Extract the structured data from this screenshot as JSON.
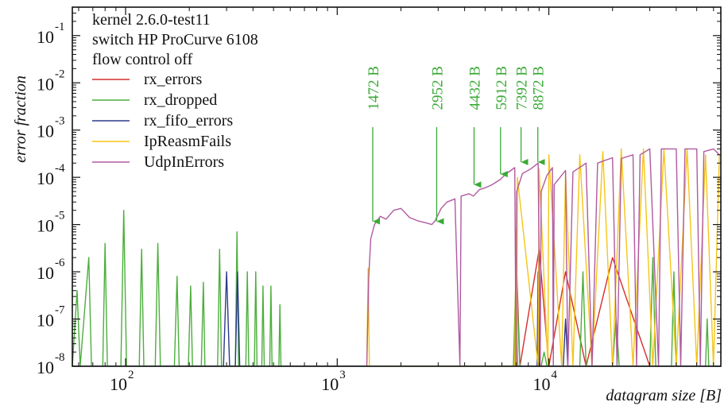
{
  "chart_data": {
    "type": "line",
    "xlabel": "datagram size [B]",
    "ylabel": "error fraction",
    "x_scale": "log",
    "y_scale": "log",
    "xlim": [
      56,
      65000
    ],
    "ylim": [
      1e-08,
      0.4
    ],
    "grid": false,
    "legend_position": "top-left",
    "info_lines": [
      "kernel 2.6.0-test11",
      "switch HP ProCurve 6108",
      "flow control off"
    ],
    "x_ticks": [
      {
        "base": "10",
        "exp": "2",
        "value": 100
      },
      {
        "base": "10",
        "exp": "3",
        "value": 1000
      },
      {
        "base": "10",
        "exp": "4",
        "value": 10000
      }
    ],
    "y_ticks": [
      {
        "base": "10",
        "exp": "-1",
        "value": 0.1
      },
      {
        "base": "10",
        "exp": "-2",
        "value": 0.01
      },
      {
        "base": "10",
        "exp": "-3",
        "value": 0.001
      },
      {
        "base": "10",
        "exp": "-4",
        "value": 0.0001
      },
      {
        "base": "10",
        "exp": "-5",
        "value": 1e-05
      },
      {
        "base": "10",
        "exp": "-6",
        "value": 1e-06
      },
      {
        "base": "10",
        "exp": "-7",
        "value": 1e-07
      },
      {
        "base": "10",
        "exp": "-8",
        "value": 1e-08
      }
    ],
    "annotations": [
      {
        "text": "1472 B",
        "x": 1472,
        "y": 1e-05
      },
      {
        "text": "2952 B",
        "x": 2952,
        "y": 1e-05
      },
      {
        "text": "4432 B",
        "x": 4432,
        "y": 6e-05
      },
      {
        "text": "5912 B",
        "x": 5912,
        "y": 0.0001
      },
      {
        "text": "7392 B",
        "x": 7392,
        "y": 0.00018
      },
      {
        "text": "8872 B",
        "x": 8872,
        "y": 0.00018
      }
    ],
    "annotation_color": "#3aaa35",
    "series": [
      {
        "name": "rx_errors",
        "color": "#d62c2c",
        "points": [
          [
            7000,
            3e-06
          ],
          [
            7300,
            1e-08
          ],
          [
            9000,
            3e-06
          ],
          [
            10000,
            1e-08
          ],
          [
            12000,
            1e-06
          ],
          [
            15000,
            1e-08
          ],
          [
            20000,
            2e-06
          ],
          [
            30000,
            1e-08
          ]
        ]
      },
      {
        "name": "rx_dropped",
        "color": "#4caf3c",
        "points": [
          [
            56,
            1e-08
          ],
          [
            59,
            4e-07
          ],
          [
            61,
            1e-08
          ],
          [
            67,
            2e-06
          ],
          [
            69,
            1e-08
          ],
          [
            78,
            1e-08
          ],
          [
            80,
            4e-06
          ],
          [
            82,
            1e-08
          ],
          [
            95,
            1e-08
          ],
          [
            98,
            2e-05
          ],
          [
            101,
            1e-08
          ],
          [
            116,
            1e-08
          ],
          [
            119,
            3e-06
          ],
          [
            122,
            1e-08
          ],
          [
            138,
            1e-08
          ],
          [
            142,
            4e-06
          ],
          [
            146,
            1e-08
          ],
          [
            170,
            1e-08
          ],
          [
            175,
            8e-07
          ],
          [
            179,
            1e-08
          ],
          [
            198,
            1e-08
          ],
          [
            203,
            5e-07
          ],
          [
            207,
            1e-08
          ],
          [
            228,
            1e-08
          ],
          [
            233,
            6e-07
          ],
          [
            237,
            1e-08
          ],
          [
            272,
            1e-08
          ],
          [
            278,
            3e-06
          ],
          [
            284,
            1e-08
          ],
          [
            330,
            1e-08
          ],
          [
            336,
            7e-06
          ],
          [
            342,
            1e-08
          ],
          [
            370,
            1e-08
          ],
          [
            376,
            1e-06
          ],
          [
            382,
            1e-08
          ],
          [
            406,
            1e-08
          ],
          [
            412,
            1e-06
          ],
          [
            418,
            1e-08
          ],
          [
            440,
            1e-08
          ],
          [
            446,
            5e-07
          ],
          [
            452,
            1e-08
          ],
          [
            480,
            1e-08
          ],
          [
            486,
            5e-07
          ],
          [
            492,
            1e-08
          ],
          [
            530,
            1e-08
          ],
          [
            536,
            2e-07
          ],
          [
            542,
            1e-08
          ],
          [
            6800,
            1e-08
          ],
          [
            7000,
            1e-06
          ],
          [
            7300,
            1e-08
          ],
          [
            9200,
            1e-08
          ],
          [
            9500,
            2e-08
          ],
          [
            9800,
            1e-08
          ],
          [
            14000,
            1e-08
          ],
          [
            14500,
            1e-06
          ],
          [
            15000,
            1e-08
          ],
          [
            20000,
            1e-08
          ],
          [
            20800,
            1e-07
          ],
          [
            21500,
            1e-08
          ],
          [
            30000,
            1e-08
          ],
          [
            31000,
            2e-06
          ],
          [
            32000,
            1e-08
          ],
          [
            38000,
            1e-08
          ],
          [
            39000,
            1e-06
          ],
          [
            40000,
            1e-08
          ],
          [
            55000,
            1e-08
          ],
          [
            56000,
            1e-07
          ],
          [
            57000,
            1e-08
          ],
          [
            65000,
            1e-08
          ]
        ]
      },
      {
        "name": "rx_fifo_errors",
        "color": "#2c3a8a",
        "points": [
          [
            56,
            1e-08
          ],
          [
            290,
            1e-08
          ],
          [
            300,
            1e-06
          ],
          [
            310,
            1e-08
          ],
          [
            330,
            1e-08
          ],
          [
            338,
            1e-06
          ],
          [
            346,
            1e-08
          ],
          [
            6900,
            1e-08
          ],
          [
            7000,
            2e-06
          ],
          [
            7100,
            1e-08
          ],
          [
            8800,
            1e-08
          ],
          [
            8900,
            1e-06
          ],
          [
            9000,
            1e-08
          ],
          [
            11700,
            1e-08
          ],
          [
            12000,
            1e-07
          ],
          [
            12300,
            1e-08
          ],
          [
            65000,
            1e-08
          ]
        ]
      },
      {
        "name": "IpReasmFails",
        "color": "#f5c518",
        "points": [
          [
            1380,
            1e-08
          ],
          [
            1400,
            1.2e-06
          ],
          [
            1420,
            1e-08
          ],
          [
            6900,
            1e-08
          ],
          [
            7000,
            8e-06
          ],
          [
            7050,
            1e-08
          ],
          [
            7100,
            0.0001
          ],
          [
            8900,
            1e-08
          ],
          [
            9000,
            0.00015
          ],
          [
            9900,
            1e-08
          ],
          [
            10000,
            0.0003
          ],
          [
            11500,
            1e-08
          ],
          [
            12000,
            0.00012
          ],
          [
            13000,
            1e-08
          ],
          [
            14000,
            0.0003
          ],
          [
            16000,
            1e-08
          ],
          [
            18000,
            0.00035
          ],
          [
            20000,
            1e-08
          ],
          [
            22000,
            0.0004
          ],
          [
            25000,
            1e-08
          ],
          [
            28000,
            0.0004
          ],
          [
            31000,
            1e-08
          ],
          [
            35000,
            0.0004
          ],
          [
            40000,
            1e-08
          ],
          [
            45000,
            0.0004
          ],
          [
            50000,
            1e-08
          ],
          [
            55000,
            0.0003
          ],
          [
            60000,
            1e-08
          ],
          [
            64000,
            0.0003
          ]
        ]
      },
      {
        "name": "UdpInErrors",
        "color": "#b05aa0",
        "points": [
          [
            1380,
            1e-08
          ],
          [
            1410,
            8e-07
          ],
          [
            1440,
            5e-06
          ],
          [
            1500,
            1e-05
          ],
          [
            1600,
            1.5e-05
          ],
          [
            1700,
            1.3e-05
          ],
          [
            1850,
            2e-05
          ],
          [
            2000,
            2.2e-05
          ],
          [
            2200,
            1.4e-05
          ],
          [
            2400,
            1.2e-05
          ],
          [
            2600,
            1.1e-05
          ],
          [
            2800,
            1e-05
          ],
          [
            2900,
            1.2e-05
          ],
          [
            3100,
            2.2e-05
          ],
          [
            3300,
            3e-05
          ],
          [
            3600,
            3.5e-05
          ],
          [
            3800,
            1e-08
          ],
          [
            3850,
            4e-05
          ],
          [
            4200,
            4.5e-05
          ],
          [
            4400,
            4e-05
          ],
          [
            4700,
            5.5e-05
          ],
          [
            5000,
            6e-05
          ],
          [
            5400,
            7e-05
          ],
          [
            5900,
            9e-05
          ],
          [
            6300,
            0.00012
          ],
          [
            6900,
            0.00016
          ],
          [
            7000,
            1e-08
          ],
          [
            7050,
            5e-05
          ],
          [
            7500,
            0.00012
          ],
          [
            8200,
            0.00015
          ],
          [
            8900,
            0.0002
          ],
          [
            9100,
            1e-08
          ],
          [
            9200,
            5e-05
          ],
          [
            9800,
            0.00011
          ],
          [
            10400,
            0.00016
          ],
          [
            10500,
            1e-08
          ],
          [
            10600,
            7e-05
          ],
          [
            12000,
            0.00014
          ],
          [
            12300,
            1e-08
          ],
          [
            13000,
            0.00013
          ],
          [
            15000,
            0.0002
          ],
          [
            16000,
            1e-08
          ],
          [
            17000,
            0.0002
          ],
          [
            20000,
            0.00026
          ],
          [
            21000,
            1e-08
          ],
          [
            22000,
            0.00025
          ],
          [
            25000,
            0.0003
          ],
          [
            26000,
            1e-08
          ],
          [
            27000,
            0.0003
          ],
          [
            30000,
            0.0004
          ],
          [
            33000,
            1e-08
          ],
          [
            34000,
            0.0004
          ],
          [
            40000,
            0.0004
          ],
          [
            42000,
            1e-08
          ],
          [
            44000,
            0.0004
          ],
          [
            50000,
            0.0004
          ],
          [
            52000,
            1e-08
          ],
          [
            54000,
            0.00035
          ],
          [
            60000,
            0.0004
          ],
          [
            64000,
            0.0003
          ]
        ]
      }
    ]
  }
}
